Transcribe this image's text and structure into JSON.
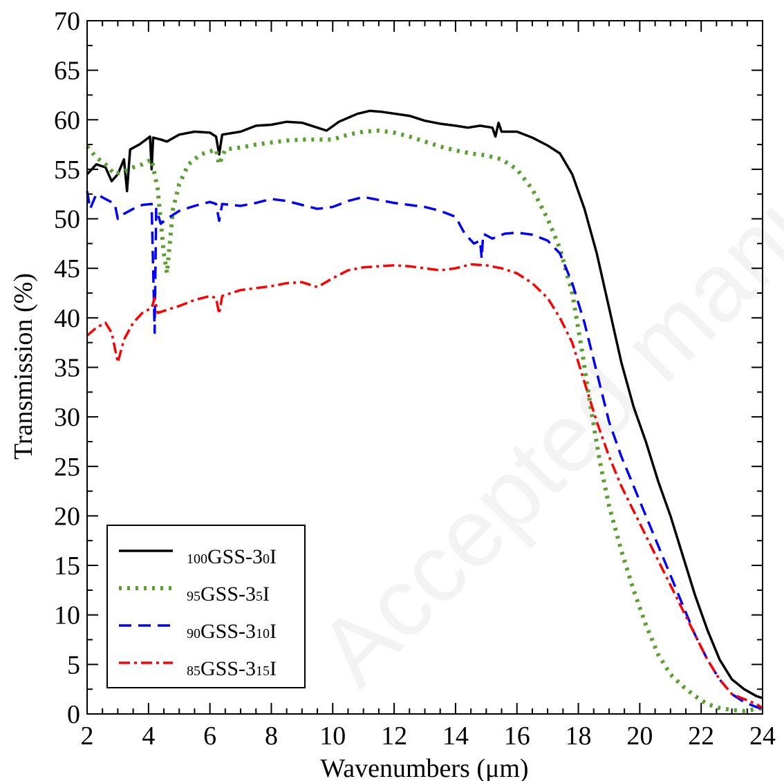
{
  "chart_data": {
    "type": "line",
    "title": "",
    "xlabel": "Wavenumbers (μm)",
    "ylabel": "Transmission (%)",
    "xlim": [
      2,
      24
    ],
    "ylim": [
      0,
      70
    ],
    "xticks": [
      2,
      4,
      6,
      8,
      10,
      12,
      14,
      16,
      18,
      20,
      22,
      24
    ],
    "yticks": [
      0,
      5,
      10,
      15,
      20,
      25,
      30,
      35,
      40,
      45,
      50,
      55,
      60,
      65,
      70
    ],
    "grid": false,
    "legend_position": "bottom-left",
    "watermark": "Accepted manuscript",
    "series": [
      {
        "name": "100GSS-30I",
        "legend": {
          "pre": "100",
          "main": "GSS-3",
          "sub": "0",
          "post": "I"
        },
        "color": "#000000",
        "dash": "",
        "width": 3.5,
        "points": [
          [
            2.0,
            54.5
          ],
          [
            2.3,
            55.5
          ],
          [
            2.6,
            55.2
          ],
          [
            2.8,
            53.8
          ],
          [
            3.0,
            54.5
          ],
          [
            3.2,
            56.0
          ],
          [
            3.3,
            52.8
          ],
          [
            3.4,
            57.0
          ],
          [
            3.7,
            57.5
          ],
          [
            4.05,
            58.3
          ],
          [
            4.1,
            55.0
          ],
          [
            4.15,
            58.2
          ],
          [
            4.4,
            58.0
          ],
          [
            4.6,
            57.8
          ],
          [
            5.0,
            58.5
          ],
          [
            5.5,
            58.8
          ],
          [
            6.0,
            58.7
          ],
          [
            6.2,
            58.3
          ],
          [
            6.3,
            56.5
          ],
          [
            6.4,
            58.5
          ],
          [
            7.0,
            58.8
          ],
          [
            7.5,
            59.4
          ],
          [
            8.0,
            59.5
          ],
          [
            8.5,
            59.8
          ],
          [
            9.0,
            59.7
          ],
          [
            9.5,
            59.2
          ],
          [
            9.8,
            58.9
          ],
          [
            10.2,
            59.8
          ],
          [
            10.8,
            60.6
          ],
          [
            11.2,
            60.9
          ],
          [
            11.6,
            60.8
          ],
          [
            12.5,
            60.4
          ],
          [
            13.0,
            59.9
          ],
          [
            13.5,
            59.6
          ],
          [
            14.0,
            59.4
          ],
          [
            14.4,
            59.2
          ],
          [
            14.8,
            59.4
          ],
          [
            15.2,
            59.2
          ],
          [
            15.3,
            58.3
          ],
          [
            15.4,
            59.7
          ],
          [
            15.5,
            58.8
          ],
          [
            16.0,
            58.8
          ],
          [
            16.5,
            58.2
          ],
          [
            17.0,
            57.4
          ],
          [
            17.4,
            56.6
          ],
          [
            17.8,
            54.5
          ],
          [
            18.2,
            51.0
          ],
          [
            18.6,
            46.5
          ],
          [
            19.0,
            41.0
          ],
          [
            19.4,
            35.5
          ],
          [
            19.8,
            31.0
          ],
          [
            20.2,
            27.5
          ],
          [
            20.6,
            23.5
          ],
          [
            21.0,
            20.0
          ],
          [
            21.4,
            16.0
          ],
          [
            21.8,
            12.0
          ],
          [
            22.2,
            8.5
          ],
          [
            22.6,
            5.5
          ],
          [
            23.0,
            3.5
          ],
          [
            23.4,
            2.5
          ],
          [
            23.8,
            1.8
          ],
          [
            24.0,
            1.6
          ]
        ]
      },
      {
        "name": "95GSS-35I",
        "legend": {
          "pre": "95",
          "main": "GSS-3",
          "sub": "5",
          "post": "I"
        },
        "color": "#5aa02c",
        "dash": "4,8",
        "width": 6,
        "points": [
          [
            2.0,
            57.3
          ],
          [
            2.3,
            56.2
          ],
          [
            2.6,
            55.5
          ],
          [
            2.9,
            54.5
          ],
          [
            3.2,
            54.8
          ],
          [
            3.5,
            55.2
          ],
          [
            3.8,
            55.5
          ],
          [
            4.1,
            56.0
          ],
          [
            4.3,
            53.0
          ],
          [
            4.5,
            46.5
          ],
          [
            4.6,
            44.5
          ],
          [
            4.8,
            51.0
          ],
          [
            5.0,
            53.5
          ],
          [
            5.3,
            55.5
          ],
          [
            5.7,
            56.5
          ],
          [
            6.2,
            57.0
          ],
          [
            6.3,
            55.5
          ],
          [
            6.5,
            57.0
          ],
          [
            7.0,
            57.2
          ],
          [
            7.5,
            57.5
          ],
          [
            8.0,
            57.7
          ],
          [
            8.5,
            57.9
          ],
          [
            9.0,
            58.0
          ],
          [
            9.5,
            58.0
          ],
          [
            10.0,
            58.0
          ],
          [
            10.5,
            58.5
          ],
          [
            11.0,
            58.8
          ],
          [
            11.5,
            58.9
          ],
          [
            12.0,
            58.7
          ],
          [
            12.5,
            58.3
          ],
          [
            13.0,
            57.8
          ],
          [
            13.5,
            57.3
          ],
          [
            14.0,
            56.9
          ],
          [
            14.5,
            56.6
          ],
          [
            15.0,
            56.4
          ],
          [
            15.5,
            56.0
          ],
          [
            16.0,
            55.0
          ],
          [
            16.5,
            53.0
          ],
          [
            17.0,
            50.0
          ],
          [
            17.4,
            47.0
          ],
          [
            17.8,
            42.5
          ],
          [
            18.1,
            37.0
          ],
          [
            18.4,
            31.0
          ],
          [
            18.7,
            25.5
          ],
          [
            19.0,
            21.0
          ],
          [
            19.4,
            16.5
          ],
          [
            19.8,
            12.5
          ],
          [
            20.2,
            9.0
          ],
          [
            20.6,
            6.0
          ],
          [
            21.0,
            4.0
          ],
          [
            21.4,
            2.8
          ],
          [
            21.8,
            1.8
          ],
          [
            22.2,
            1.0
          ],
          [
            22.6,
            0.6
          ],
          [
            23.0,
            0.4
          ],
          [
            23.4,
            0.3
          ],
          [
            23.8,
            0.5
          ],
          [
            24.0,
            0.6
          ]
        ]
      },
      {
        "name": "90GSS-310I",
        "legend": {
          "pre": "90",
          "main": "GSS-3",
          "sub": "10",
          "post": "I"
        },
        "color": "#0000ff",
        "dash": "18,10",
        "width": 3.5,
        "points": [
          [
            2.0,
            52.8
          ],
          [
            2.1,
            51.0
          ],
          [
            2.3,
            52.5
          ],
          [
            2.6,
            52.0
          ],
          [
            2.9,
            51.5
          ],
          [
            3.0,
            50.0
          ],
          [
            3.2,
            50.5
          ],
          [
            3.5,
            51.0
          ],
          [
            3.8,
            51.4
          ],
          [
            4.1,
            51.5
          ],
          [
            4.2,
            38.5
          ],
          [
            4.25,
            51.0
          ],
          [
            4.4,
            49.5
          ],
          [
            4.6,
            50.0
          ],
          [
            5.0,
            50.8
          ],
          [
            5.5,
            51.3
          ],
          [
            6.0,
            51.7
          ],
          [
            6.2,
            51.5
          ],
          [
            6.3,
            49.8
          ],
          [
            6.4,
            51.5
          ],
          [
            7.0,
            51.3
          ],
          [
            7.5,
            51.6
          ],
          [
            8.0,
            52.0
          ],
          [
            8.5,
            51.8
          ],
          [
            9.0,
            51.4
          ],
          [
            9.5,
            51.0
          ],
          [
            10.0,
            51.2
          ],
          [
            10.5,
            51.8
          ],
          [
            11.0,
            52.2
          ],
          [
            11.5,
            51.9
          ],
          [
            12.0,
            51.6
          ],
          [
            12.5,
            51.4
          ],
          [
            13.0,
            51.2
          ],
          [
            13.5,
            50.8
          ],
          [
            14.0,
            50.2
          ],
          [
            14.3,
            48.5
          ],
          [
            14.6,
            47.5
          ],
          [
            14.8,
            47.8
          ],
          [
            14.85,
            46.0
          ],
          [
            14.9,
            48.5
          ],
          [
            15.2,
            48.0
          ],
          [
            15.6,
            48.5
          ],
          [
            16.0,
            48.6
          ],
          [
            16.5,
            48.4
          ],
          [
            17.0,
            47.8
          ],
          [
            17.4,
            46.5
          ],
          [
            17.8,
            43.5
          ],
          [
            18.2,
            39.5
          ],
          [
            18.6,
            34.5
          ],
          [
            19.0,
            29.5
          ],
          [
            19.4,
            26.0
          ],
          [
            19.8,
            23.0
          ],
          [
            20.2,
            20.0
          ],
          [
            20.6,
            17.0
          ],
          [
            21.0,
            14.0
          ],
          [
            21.4,
            11.0
          ],
          [
            21.8,
            8.0
          ],
          [
            22.2,
            5.5
          ],
          [
            22.6,
            3.5
          ],
          [
            23.0,
            2.0
          ],
          [
            23.4,
            1.2
          ],
          [
            23.8,
            0.7
          ],
          [
            24.0,
            0.5
          ]
        ]
      },
      {
        "name": "85GSS-315I",
        "legend": {
          "pre": "85",
          "main": "GSS-3",
          "sub": "15",
          "post": "I"
        },
        "color": "#ff0000",
        "dash": "16,6,4,6",
        "width": 3.5,
        "points": [
          [
            2.0,
            38.2
          ],
          [
            2.3,
            39.0
          ],
          [
            2.6,
            39.5
          ],
          [
            2.8,
            38.5
          ],
          [
            3.0,
            35.5
          ],
          [
            3.2,
            37.8
          ],
          [
            3.5,
            39.5
          ],
          [
            3.8,
            40.5
          ],
          [
            4.1,
            41.0
          ],
          [
            4.2,
            42.0
          ],
          [
            4.3,
            40.5
          ],
          [
            4.5,
            40.7
          ],
          [
            5.0,
            41.2
          ],
          [
            5.5,
            41.8
          ],
          [
            6.0,
            42.2
          ],
          [
            6.2,
            42.0
          ],
          [
            6.3,
            40.4
          ],
          [
            6.4,
            42.2
          ],
          [
            7.0,
            42.8
          ],
          [
            7.5,
            43.0
          ],
          [
            8.0,
            43.2
          ],
          [
            8.5,
            43.5
          ],
          [
            9.0,
            43.6
          ],
          [
            9.5,
            43.1
          ],
          [
            10.0,
            44.0
          ],
          [
            10.5,
            44.8
          ],
          [
            11.0,
            45.1
          ],
          [
            11.5,
            45.2
          ],
          [
            12.0,
            45.3
          ],
          [
            12.5,
            45.2
          ],
          [
            13.0,
            45.0
          ],
          [
            13.5,
            44.8
          ],
          [
            14.0,
            45.0
          ],
          [
            14.5,
            45.4
          ],
          [
            15.0,
            45.3
          ],
          [
            15.5,
            45.0
          ],
          [
            16.0,
            44.5
          ],
          [
            16.5,
            43.5
          ],
          [
            17.0,
            42.0
          ],
          [
            17.4,
            40.0
          ],
          [
            17.8,
            37.5
          ],
          [
            18.2,
            33.5
          ],
          [
            18.6,
            29.5
          ],
          [
            19.0,
            26.0
          ],
          [
            19.4,
            23.0
          ],
          [
            19.8,
            20.5
          ],
          [
            20.2,
            18.0
          ],
          [
            20.6,
            15.5
          ],
          [
            21.0,
            13.0
          ],
          [
            21.4,
            10.5
          ],
          [
            21.8,
            8.0
          ],
          [
            22.2,
            5.5
          ],
          [
            22.6,
            3.5
          ],
          [
            23.0,
            2.0
          ],
          [
            23.4,
            1.5
          ],
          [
            23.8,
            1.0
          ],
          [
            24.0,
            0.6
          ]
        ]
      }
    ]
  }
}
